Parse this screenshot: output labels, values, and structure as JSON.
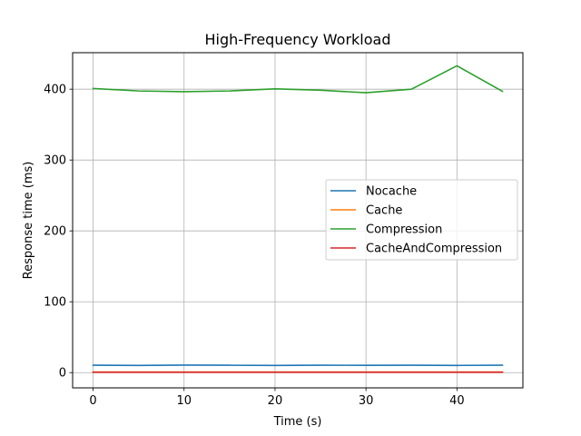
{
  "chart_data": {
    "type": "line",
    "title": "High-Frequency Workload",
    "xlabel": "Time (s)",
    "ylabel": "Response time (ms)",
    "xlim": [
      -2.25,
      47.25
    ],
    "ylim": [
      -21.5,
      451.5
    ],
    "xticks": [
      0,
      10,
      20,
      30,
      40
    ],
    "yticks": [
      0,
      100,
      200,
      300,
      400
    ],
    "xtick_labels": [
      "0",
      "10",
      "20",
      "30",
      "40"
    ],
    "ytick_labels": [
      "0",
      "100",
      "200",
      "300",
      "400"
    ],
    "grid": true,
    "legend_position": "center-right",
    "x": [
      0,
      5,
      10,
      15,
      20,
      25,
      30,
      35,
      40,
      45
    ],
    "series": [
      {
        "name": "Nocache",
        "color": "#1f77b4",
        "values": [
          10.5,
          10.2,
          10.6,
          10.4,
          10.1,
          10.5,
          10.3,
          10.4,
          10.2,
          10.4
        ]
      },
      {
        "name": "Cache",
        "color": "#ff7f0e",
        "values": [
          0.8,
          0.8,
          0.8,
          0.8,
          0.8,
          0.8,
          0.8,
          0.8,
          0.8,
          0.8
        ]
      },
      {
        "name": "Compression",
        "color": "#2ca02c",
        "values": [
          401,
          397.5,
          396.5,
          397.5,
          400.5,
          398.5,
          395,
          400,
          433,
          397
        ]
      },
      {
        "name": "CacheAndCompression",
        "color": "#d62728",
        "values": [
          0.5,
          0.5,
          0.5,
          0.5,
          0.5,
          0.5,
          0.5,
          0.5,
          0.5,
          0.5
        ]
      }
    ]
  }
}
